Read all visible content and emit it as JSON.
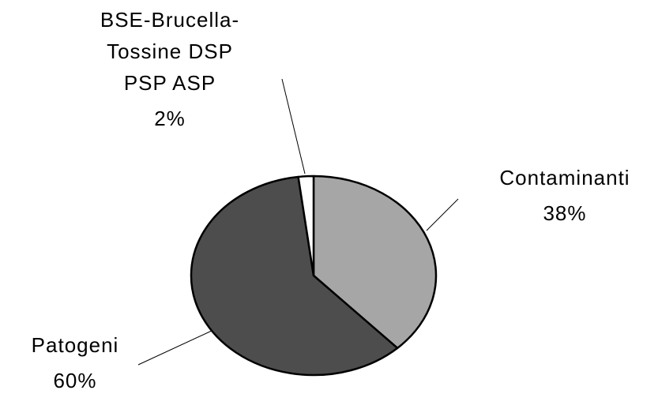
{
  "chart_data": {
    "type": "pie",
    "categories": [
      "Contaminanti",
      "Patogeni",
      "BSE-Brucella-Tossine DSP PSP ASP"
    ],
    "values": [
      38,
      60,
      2
    ],
    "value_labels": [
      "38%",
      "60%",
      "2%"
    ],
    "colors": [
      "#a6a6a6",
      "#4d4d4d",
      "#ffffff"
    ]
  }
}
